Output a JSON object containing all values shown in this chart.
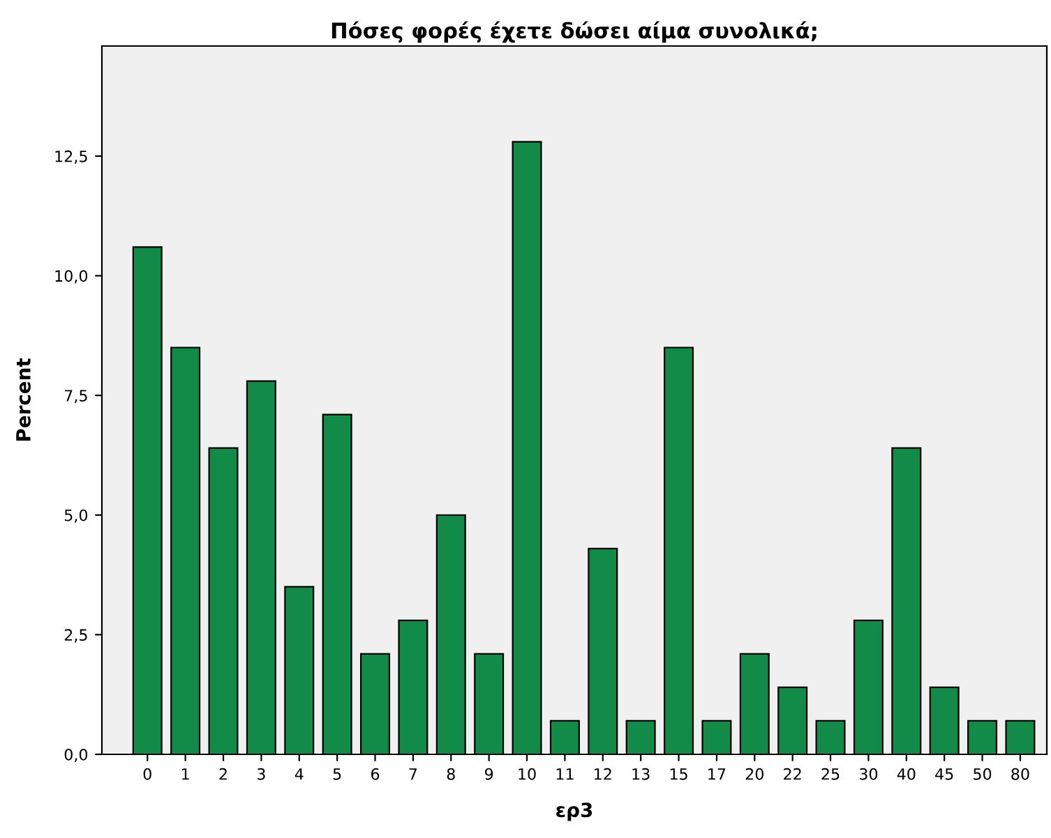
{
  "chart_data": {
    "type": "bar",
    "title": "Πόσες φορές έχετε δώσει αίμα συνολικά;",
    "xlabel": "ερ3",
    "ylabel": "Percent",
    "categories": [
      "0",
      "1",
      "2",
      "3",
      "4",
      "5",
      "6",
      "7",
      "8",
      "9",
      "10",
      "11",
      "12",
      "13",
      "15",
      "17",
      "20",
      "22",
      "25",
      "30",
      "40",
      "45",
      "50",
      "80"
    ],
    "values": [
      10.6,
      8.5,
      6.4,
      7.8,
      3.5,
      7.1,
      2.1,
      2.8,
      5.0,
      2.1,
      12.8,
      0.7,
      4.3,
      0.7,
      8.5,
      0.7,
      2.1,
      1.4,
      0.7,
      2.8,
      6.4,
      1.4,
      0.7,
      0.7
    ],
    "color": "#118b47",
    "ylim": [
      0,
      14.8
    ],
    "yticks": [
      {
        "value": 0,
        "label": "0,0"
      },
      {
        "value": 2.5,
        "label": "2,5"
      },
      {
        "value": 5,
        "label": "5,0"
      },
      {
        "value": 7.5,
        "label": "7,5"
      },
      {
        "value": 10,
        "label": "10,0"
      },
      {
        "value": 12.5,
        "label": "12,5"
      }
    ],
    "grid": false
  }
}
